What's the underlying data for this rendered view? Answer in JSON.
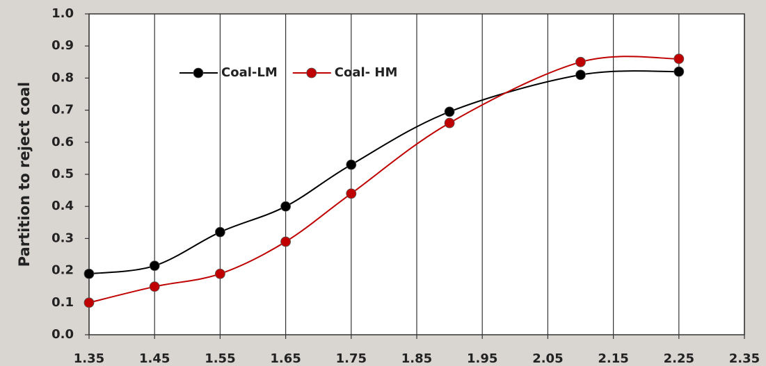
{
  "chart_data": {
    "type": "line",
    "y_label": "Partition to reject coal",
    "series": [
      {
        "name": "Coal-LM",
        "color": "#000000",
        "x": [
          1.35,
          1.45,
          1.55,
          1.65,
          1.75,
          1.9,
          2.1,
          2.25
        ],
        "values": [
          0.19,
          0.215,
          0.32,
          0.4,
          0.53,
          0.695,
          0.81,
          0.82
        ]
      },
      {
        "name": "Coal- HM",
        "color": "#c00000",
        "x": [
          1.35,
          1.45,
          1.55,
          1.65,
          1.75,
          1.9,
          2.1,
          2.25
        ],
        "values": [
          0.1,
          0.15,
          0.19,
          0.29,
          0.44,
          0.66,
          0.85,
          0.86
        ]
      }
    ],
    "xlim": [
      1.35,
      2.35
    ],
    "xticks": [
      1.35,
      1.45,
      1.55,
      1.65,
      1.75,
      1.85,
      1.95,
      2.05,
      2.15,
      2.25,
      2.35
    ],
    "ylim": [
      0,
      1
    ],
    "yticks": [
      {
        "value": 0,
        "label": "0.0"
      },
      0.1,
      0.2,
      0.3,
      0.4,
      0.5,
      0.6,
      0.7,
      0.8,
      0.9,
      {
        "value": 1,
        "label": "1.0"
      }
    ],
    "grid": "x",
    "smooth": true,
    "legend": "upper left"
  }
}
